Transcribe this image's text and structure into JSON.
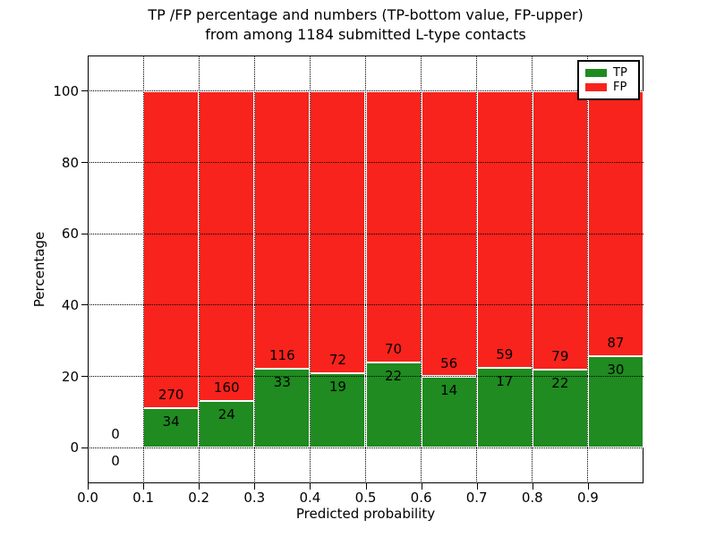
{
  "title": {
    "line1": "TP /FP percentage and numbers (TP-bottom value, FP-upper)",
    "line2": "from among 1184 submitted L-type contacts"
  },
  "chart_data": {
    "type": "bar",
    "stacked": true,
    "normalized_to_percent": true,
    "total_contacts": "1184",
    "xlabel": "Predicted probability",
    "ylabel": "Percentage",
    "xlim": [
      0.0,
      1.0
    ],
    "ylim": [
      -10,
      110
    ],
    "xticks": [
      "0.0",
      "0.1",
      "0.2",
      "0.3",
      "0.4",
      "0.5",
      "0.6",
      "0.7",
      "0.8",
      "0.9"
    ],
    "yticks": [
      0,
      20,
      40,
      60,
      80,
      100
    ],
    "grid": {
      "style": "dotted",
      "color": "#000000",
      "on": true
    },
    "bins": [
      {
        "x0": 0.0,
        "x1": 0.1,
        "tp": 0,
        "fp": 0
      },
      {
        "x0": 0.1,
        "x1": 0.2,
        "tp": 34,
        "fp": 270
      },
      {
        "x0": 0.2,
        "x1": 0.3,
        "tp": 24,
        "fp": 160
      },
      {
        "x0": 0.3,
        "x1": 0.4,
        "tp": 33,
        "fp": 116
      },
      {
        "x0": 0.4,
        "x1": 0.5,
        "tp": 19,
        "fp": 72
      },
      {
        "x0": 0.5,
        "x1": 0.6,
        "tp": 22,
        "fp": 70
      },
      {
        "x0": 0.6,
        "x1": 0.7,
        "tp": 14,
        "fp": 56
      },
      {
        "x0": 0.7,
        "x1": 0.8,
        "tp": 17,
        "fp": 59
      },
      {
        "x0": 0.8,
        "x1": 0.9,
        "tp": 22,
        "fp": 79
      },
      {
        "x0": 0.9,
        "x1": 1.0,
        "tp": 30,
        "fp": 87
      }
    ],
    "legend": {
      "position": "upper-right",
      "entries": [
        {
          "label": "TP",
          "color": "#1f8b20"
        },
        {
          "label": "FP",
          "color": "#f8231c"
        }
      ]
    }
  }
}
